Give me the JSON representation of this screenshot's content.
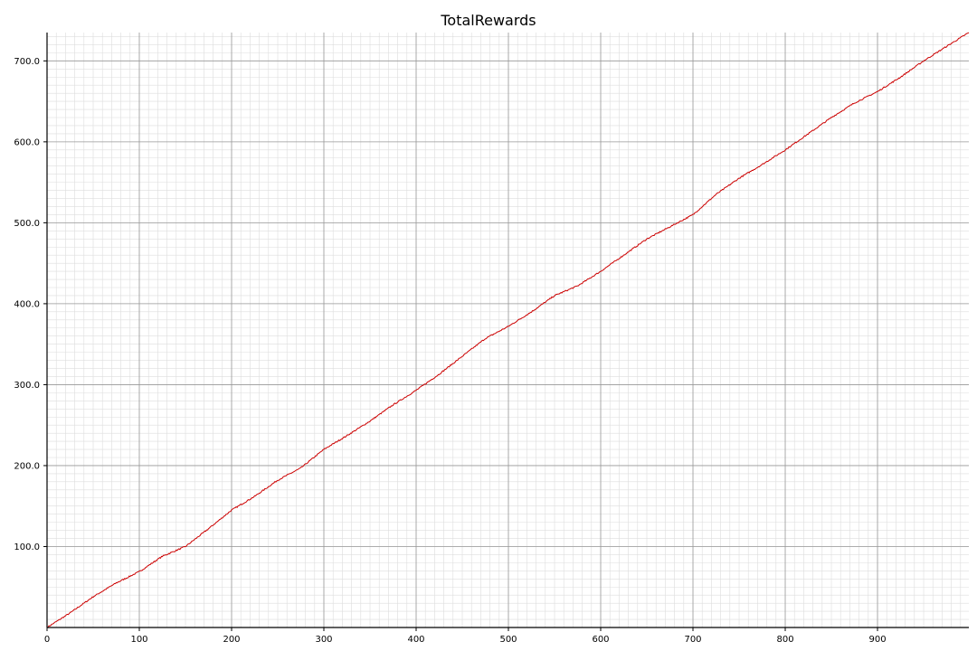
{
  "chart_data": {
    "type": "line",
    "title": "TotalRewards",
    "xlim": [
      0,
      999
    ],
    "ylim": [
      0,
      735
    ],
    "x_ticks": [
      0,
      100,
      200,
      300,
      400,
      500,
      600,
      700,
      800,
      900
    ],
    "x_tick_labels": [
      "0",
      "100",
      "200",
      "300",
      "400",
      "500",
      "600",
      "700",
      "800",
      "900"
    ],
    "y_ticks": [
      100,
      200,
      300,
      400,
      500,
      600,
      700
    ],
    "y_tick_labels": [
      "100.0",
      "200.0",
      "300.0",
      "400.0",
      "500.0",
      "600.0",
      "700.0"
    ],
    "x_minor_step": 10,
    "y_minor_step": 10,
    "grid": true,
    "colors": {
      "line": "#cc0000",
      "major_grid": "#999999",
      "minor_grid": "#dddddd",
      "axis": "#000000"
    },
    "series": [
      {
        "x": [
          0,
          25,
          50,
          75,
          100,
          125,
          150,
          175,
          200,
          225,
          250,
          275,
          300,
          325,
          350,
          375,
          400,
          425,
          450,
          475,
          500,
          525,
          550,
          575,
          600,
          625,
          650,
          675,
          700,
          725,
          750,
          775,
          800,
          825,
          850,
          875,
          900,
          925,
          950,
          975,
          999
        ],
        "y": [
          0,
          18,
          38,
          55,
          69,
          88,
          100,
          122,
          145,
          162,
          182,
          197,
          220,
          237,
          255,
          275,
          293,
          313,
          335,
          357,
          372,
          390,
          410,
          422,
          440,
          460,
          480,
          495,
          510,
          535,
          555,
          572,
          590,
          610,
          630,
          648,
          662,
          680,
          700,
          718,
          735
        ]
      }
    ]
  }
}
